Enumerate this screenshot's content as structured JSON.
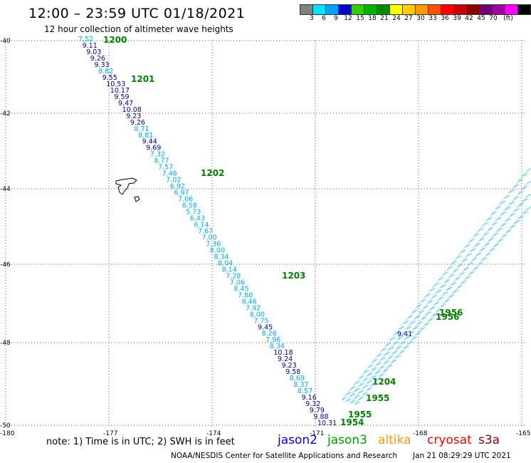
{
  "header": {
    "title": "12:00 – 23:59 UTC 01/18/2021",
    "subtitle": "12 hour collection of altimeter wave heights"
  },
  "colorbar": {
    "colors": [
      "#808080",
      "#00e5ff",
      "#00a0ff",
      "#0000c8",
      "#30d000",
      "#00b400",
      "#008c00",
      "#ffff00",
      "#ffcc00",
      "#ff9900",
      "#ff5000",
      "#ff0000",
      "#c80000",
      "#8c0000",
      "#700070",
      "#a000a0",
      "#ff00ff",
      "#000000"
    ],
    "labels": [
      "3",
      "6",
      "9",
      "12",
      "15",
      "18",
      "21",
      "24",
      "27",
      "30",
      "33",
      "36",
      "39",
      "42",
      "45",
      "70",
      "(ft)"
    ]
  },
  "axes": {
    "x_ticks": [
      "-180",
      "-177",
      "-174",
      "-171",
      "-168",
      "-165"
    ],
    "y_ticks": [
      "-40",
      "-42",
      "-44",
      "-46",
      "-48",
      "-50"
    ]
  },
  "tracks": {
    "track_a_values": [
      "7.52",
      "9.11",
      "9.03",
      "9.26",
      "9.33",
      "8.82",
      "9.55",
      "10.53",
      "10.17",
      "9.59",
      "9.47",
      "10.08",
      "9.23",
      "9.26",
      "8.71",
      "8.81",
      "9.44",
      "9.69",
      "7.32",
      "8.77",
      "7.57",
      "7.46",
      "7.02",
      "6.92",
      "6.97",
      "7.06",
      "6.58",
      "5.73",
      "6.43",
      "6.14",
      "7.67",
      "7.00",
      "7.36",
      "8.00",
      "8.34",
      "8.04",
      "8.14",
      "7.28",
      "7.06",
      "8.45",
      "7.80",
      "8.46",
      "7.92",
      "8.00",
      "7.75",
      "9.45",
      "8.26",
      "7.96",
      "8.34",
      "10.18",
      "9.24",
      "9.23",
      "9.58",
      "8.69",
      "8.37",
      "8.57",
      "9.16",
      "9.32",
      "9.79",
      "9.88",
      "10.31"
    ],
    "track_a_colors": [
      "cyan",
      "navy",
      "navy",
      "navy",
      "navy",
      "cyan",
      "navy",
      "navy",
      "navy",
      "navy",
      "navy",
      "navy",
      "navy",
      "navy",
      "cyan",
      "cyan",
      "navy",
      "navy",
      "cyan",
      "cyan",
      "cyan",
      "cyan",
      "cyan",
      "cyan",
      "cyan",
      "cyan",
      "cyan",
      "cyan",
      "cyan",
      "cyan",
      "cyan",
      "cyan",
      "cyan",
      "cyan",
      "cyan",
      "cyan",
      "cyan",
      "cyan",
      "cyan",
      "cyan",
      "cyan",
      "cyan",
      "cyan",
      "cyan",
      "cyan",
      "navy",
      "cyan",
      "cyan",
      "cyan",
      "navy",
      "navy",
      "navy",
      "navy",
      "cyan",
      "cyan",
      "cyan",
      "navy",
      "navy",
      "navy",
      "navy",
      "navy"
    ],
    "track_b_values": [
      "9.41"
    ],
    "time_labels": [
      "1200",
      "1201",
      "1202",
      "1203",
      "1204",
      "1955",
      "1955",
      "1954",
      "1956",
      "1956"
    ]
  },
  "legend": {
    "note": "note:  1) Time is in UTC; 2) SWH is in feet",
    "sats": [
      {
        "name": "jason2",
        "color": "#0000ff"
      },
      {
        "name": "jason3",
        "color": "#00a000"
      },
      {
        "name": "altika",
        "color": "#ff9900"
      },
      {
        "name": "cryosat",
        "color": "#ff0000"
      },
      {
        "name": "s3a",
        "color": "#8b0000"
      }
    ]
  },
  "footer": {
    "credit": "NOAA/NESDIS Center for Satellite Applications and Research",
    "timestamp": "Jan 21 08:29:29 UTC 2021"
  }
}
